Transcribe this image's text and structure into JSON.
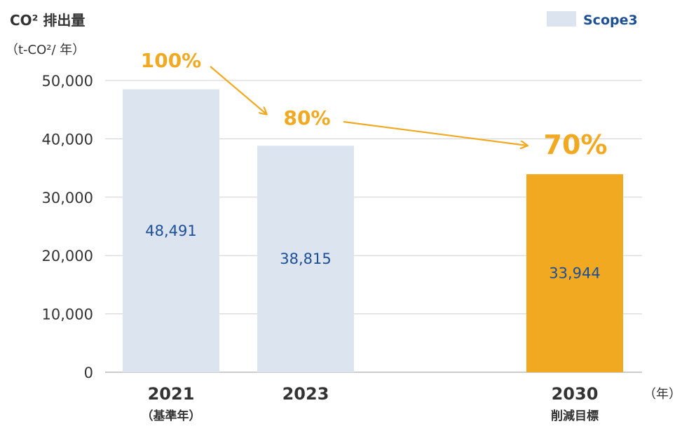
{
  "header": {
    "title": "CO² 排出量",
    "unit": "（t-CO²/ 年）"
  },
  "legend": {
    "label": "Scope3",
    "swatch_color": "#dbe4ef",
    "text_color": "#1d4f96"
  },
  "x_axis_unit": "（年）",
  "colors": {
    "scope3_bar": "#dbe4ef",
    "target_bar": "#f2a922",
    "value_label": "#1d4f96",
    "arrow": "#f2a922",
    "grid": "#d0d0d0",
    "axis_text": "#333333"
  },
  "chart_data": {
    "type": "bar",
    "categories": [
      "2021",
      "2023",
      "2030"
    ],
    "category_sublabels": [
      "（基準年）",
      "",
      "削減目標"
    ],
    "series": [
      {
        "name": "Scope3",
        "values": [
          48491,
          38815,
          33944
        ]
      }
    ],
    "value_labels": [
      "48,491",
      "38,815",
      "33,944"
    ],
    "percent_labels": [
      "100%",
      "80%",
      "70%"
    ],
    "y_ticks": [
      "0",
      "10,000",
      "20,000",
      "30,000",
      "40,000",
      "50,000"
    ],
    "y_tick_values": [
      0,
      10000,
      20000,
      30000,
      40000,
      50000
    ],
    "ylim": [
      0,
      50000
    ],
    "grid": true,
    "legend_position": "top-right"
  }
}
